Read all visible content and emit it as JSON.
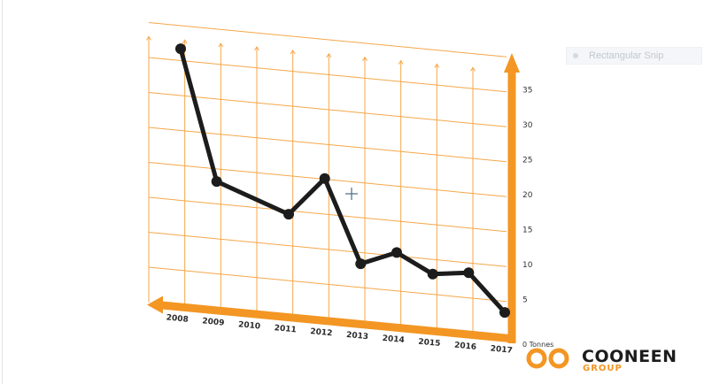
{
  "chart_data": {
    "type": "line",
    "categories": [
      "2008",
      "2009",
      "2010",
      "2011",
      "2012",
      "2013",
      "2014",
      "2015",
      "2016",
      "2017"
    ],
    "x": [
      2008,
      2009,
      2011,
      2012,
      2013,
      2014,
      2015,
      2016,
      2017
    ],
    "values": [
      36.7,
      18.2,
      14.5,
      20.1,
      8.4,
      10.5,
      7.9,
      8.6,
      3.4
    ],
    "yticks": [
      5,
      10,
      15,
      20,
      25,
      30,
      35
    ],
    "ylim": [
      0,
      40
    ],
    "ylabel": "",
    "y_zero_label": "0 Tonnes",
    "title": "",
    "grid": true,
    "axis_color": "#f39623",
    "grid_color": "#f5a74a",
    "line_color": "#1c1c1c"
  },
  "logo": {
    "name": "COONEEN",
    "sub": "GROUP",
    "mark_color": "#f39623"
  },
  "overlay": {
    "snip_label": "Rectangular Snip"
  }
}
